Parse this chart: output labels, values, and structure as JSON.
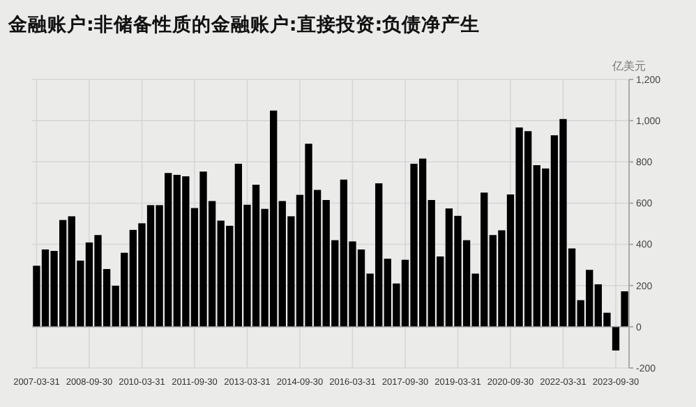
{
  "chart_data": {
    "type": "bar",
    "title": "金融账户:非储备性质的金融账户:直接投资:负债净产生",
    "ylabel": "亿美元",
    "categories": [
      "2007-03-31",
      null,
      null,
      null,
      null,
      null,
      "2008-09-30",
      null,
      null,
      null,
      null,
      null,
      "2010-03-31",
      null,
      null,
      null,
      null,
      null,
      "2011-09-30",
      null,
      null,
      null,
      null,
      null,
      "2013-03-31",
      null,
      null,
      null,
      null,
      null,
      "2014-09-30",
      null,
      null,
      null,
      null,
      null,
      "2016-03-31",
      null,
      null,
      null,
      null,
      null,
      "2017-09-30",
      null,
      null,
      null,
      null,
      null,
      "2019-03-31",
      null,
      null,
      null,
      null,
      null,
      "2020-09-30",
      null,
      null,
      null,
      null,
      null,
      "2022-03-31",
      null,
      null,
      null,
      null,
      null,
      "2023-09-30",
      null
    ],
    "values": [
      296,
      375,
      368,
      518,
      536,
      321,
      409,
      445,
      280,
      199,
      359,
      470,
      502,
      590,
      590,
      746,
      737,
      730,
      576,
      753,
      610,
      515,
      490,
      791,
      592,
      689,
      572,
      1049,
      610,
      536,
      640,
      888,
      664,
      615,
      420,
      714,
      414,
      375,
      258,
      696,
      330,
      210,
      325,
      791,
      816,
      615,
      341,
      574,
      538,
      420,
      258,
      651,
      445,
      468,
      642,
      967,
      949,
      784,
      768,
      929,
      1008,
      380,
      129,
      276,
      206,
      68,
      -115,
      172
    ],
    "color": "#000000",
    "ylim": [
      -200,
      1200
    ],
    "yticks": [
      {
        "value": -200,
        "label": "-200"
      },
      0,
      200,
      400,
      600,
      800,
      {
        "value": 1000,
        "label": "1,000"
      },
      {
        "value": 1200,
        "label": "1,200"
      }
    ],
    "grid": true
  }
}
